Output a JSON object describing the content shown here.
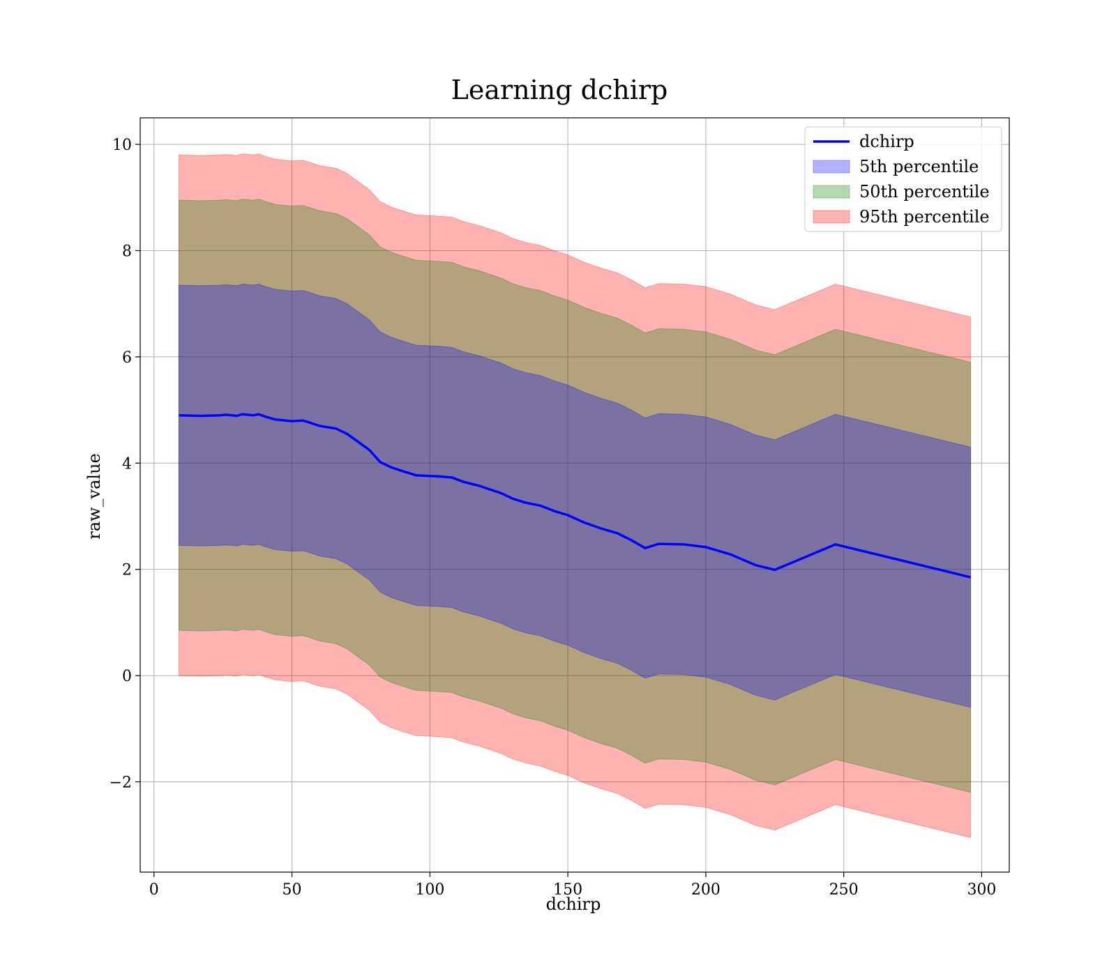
{
  "chart_data": {
    "type": "area",
    "title": "Learning dchirp",
    "xlabel": "dchirp",
    "ylabel": "raw_value",
    "xlim": [
      -5,
      310
    ],
    "ylim": [
      -3.7,
      10.5
    ],
    "xticks": [
      0,
      50,
      100,
      150,
      200,
      250,
      300
    ],
    "xtick_labels": [
      "0",
      "50",
      "100",
      "150",
      "200",
      "250",
      "300"
    ],
    "yticks": [
      -2,
      0,
      2,
      4,
      6,
      8,
      10
    ],
    "ytick_labels": [
      "−2",
      "0",
      "2",
      "4",
      "6",
      "8",
      "10"
    ],
    "grid": true,
    "legend_position": "top-right",
    "x": [
      9,
      17,
      24,
      26,
      30,
      32,
      36,
      38,
      40,
      44,
      50,
      54,
      56,
      60,
      66,
      70,
      74,
      78,
      82,
      86,
      90,
      95,
      99,
      103,
      108,
      112,
      118,
      122,
      126,
      130,
      135,
      140,
      145,
      150,
      156,
      162,
      168,
      173,
      178,
      183,
      192,
      200,
      209,
      218,
      225,
      247,
      296
    ],
    "line": {
      "name": "dchirp",
      "color": "#0000ff",
      "values": [
        4.9,
        4.89,
        4.9,
        4.91,
        4.89,
        4.92,
        4.9,
        4.92,
        4.88,
        4.82,
        4.79,
        4.8,
        4.77,
        4.7,
        4.65,
        4.55,
        4.4,
        4.25,
        4.02,
        3.92,
        3.85,
        3.77,
        3.76,
        3.75,
        3.73,
        3.65,
        3.57,
        3.5,
        3.43,
        3.33,
        3.25,
        3.2,
        3.1,
        3.02,
        2.88,
        2.77,
        2.68,
        2.55,
        2.4,
        2.48,
        2.47,
        2.42,
        2.28,
        2.08,
        1.99,
        2.47,
        1.85
      ]
    },
    "series": [
      {
        "name": "5th percentile",
        "color": "#0000ff",
        "opacity": 0.3,
        "offset": 2.45
      },
      {
        "name": "50th percentile",
        "color": "#008000",
        "opacity": 0.3,
        "offset": 4.05
      },
      {
        "name": "95th percentile",
        "color": "#ff0000",
        "opacity": 0.3,
        "offset": 4.9
      }
    ]
  }
}
